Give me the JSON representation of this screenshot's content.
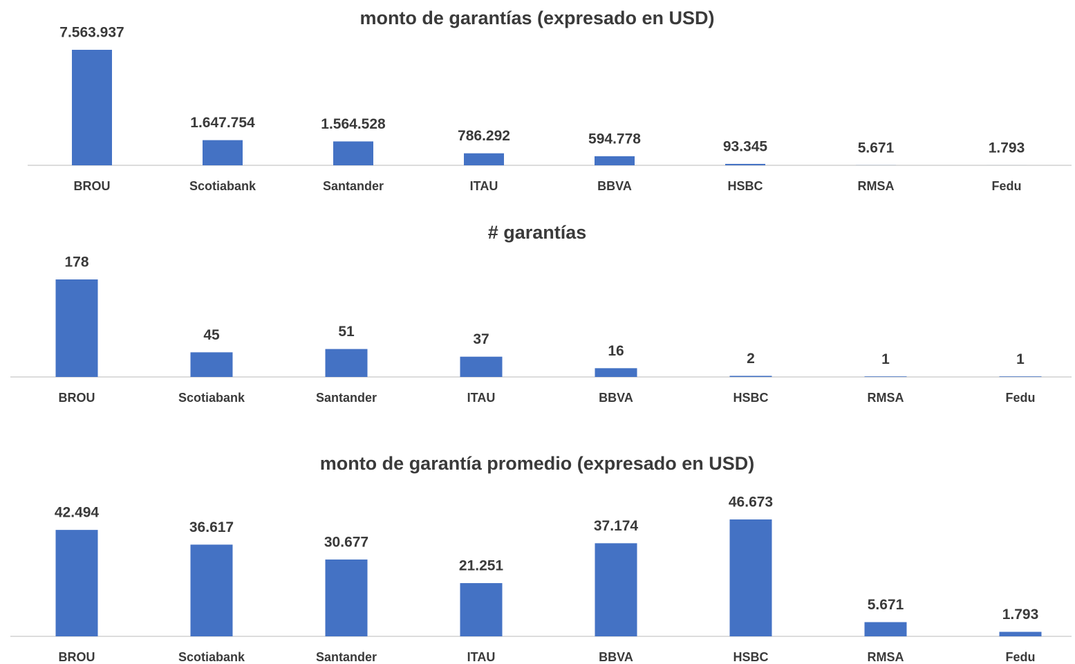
{
  "chart_data": [
    {
      "type": "bar",
      "title": "monto de garantías (expresado en USD)",
      "categories": [
        "BROU",
        "Scotiabank",
        "Santander",
        "ITAU",
        "BBVA",
        "HSBC",
        "RMSA",
        "Fedu"
      ],
      "values": [
        7563937,
        1647754,
        1564528,
        786292,
        594778,
        93345,
        5671,
        1793
      ],
      "value_labels": [
        "7.563.937",
        "1.647.754",
        "1.564.528",
        "786.292",
        "594.778",
        "93.345",
        "5.671",
        "1.793"
      ],
      "color": "#4472c4"
    },
    {
      "type": "bar",
      "title": "# garantías",
      "categories": [
        "BROU",
        "Scotiabank",
        "Santander",
        "ITAU",
        "BBVA",
        "HSBC",
        "RMSA",
        "Fedu"
      ],
      "values": [
        178,
        45,
        51,
        37,
        16,
        2,
        1,
        1
      ],
      "color": "#4472c4"
    },
    {
      "type": "bar",
      "title": "monto de garantía promedio (expresado en USD)",
      "categories": [
        "BROU",
        "Scotiabank",
        "Santander",
        "ITAU",
        "BBVA",
        "HSBC",
        "RMSA",
        "Fedu"
      ],
      "values": [
        42494,
        36617,
        30677,
        21251,
        37174,
        46673,
        5671,
        1793
      ],
      "value_labels": [
        "42.494",
        "36.617",
        "30.677",
        "21.251",
        "37.174",
        "46.673",
        "5.671",
        "1.793"
      ],
      "color": "#4472c4"
    }
  ]
}
